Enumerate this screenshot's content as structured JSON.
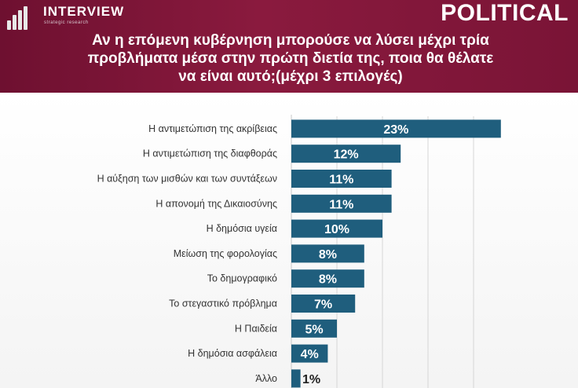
{
  "header": {
    "logo_name": "INTERVIEW",
    "logo_tagline": "strategic research",
    "brand": "POLITICAL",
    "question_lines": [
      "Αν η επόμενη κυβέρνηση μπορούσε να λύσει μέχρι τρία",
      "προβλήματα μέσα στην πρώτη διετία της, ποια θα θέλατε",
      "να είναι αυτό;(μέχρι 3 επιλογές)"
    ]
  },
  "colors": {
    "header": "#7a1436",
    "bar": "#1f5e7d",
    "text": "#333333"
  },
  "chart_data": {
    "type": "bar",
    "orientation": "horizontal",
    "categories": [
      "Η αντιμετώπιση της ακρίβειας",
      "Η αντιμετώπιση της διαφθοράς",
      "Η αύξηση των μισθών και των συντάξεων",
      "Η απονομή της Δικαιοσύνης",
      "Η δημόσια υγεία",
      "Μείωση της φορολογίας",
      "Το δημογραφικό",
      "Το στεγαστικό πρόβλημα",
      "Η Παιδεία",
      "Η δημόσια ασφάλεια",
      "Άλλο"
    ],
    "values": [
      23,
      12,
      11,
      11,
      10,
      8,
      8,
      7,
      5,
      4,
      1
    ],
    "data_labels": [
      "23%",
      "12%",
      "11%",
      "11%",
      "10%",
      "8%",
      "8%",
      "7%",
      "5%",
      "4%",
      "1%"
    ],
    "xlim": [
      0,
      25
    ],
    "grid": true
  }
}
